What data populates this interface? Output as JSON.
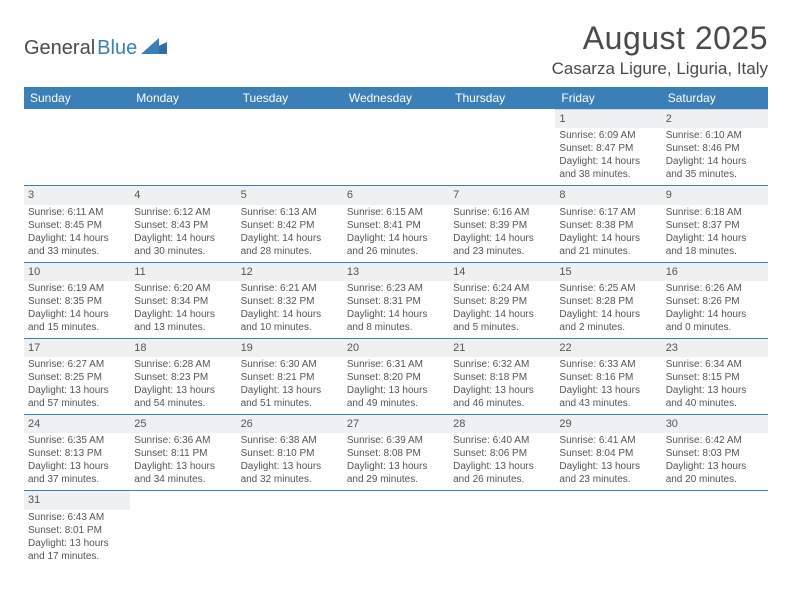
{
  "logo": {
    "text1": "General",
    "text2": "Blue"
  },
  "title": "August 2025",
  "location": "Casarza Ligure, Liguria, Italy",
  "header_bg": "#3a7fb8",
  "days": [
    "Sunday",
    "Monday",
    "Tuesday",
    "Wednesday",
    "Thursday",
    "Friday",
    "Saturday"
  ],
  "weeks": [
    [
      null,
      null,
      null,
      null,
      null,
      {
        "n": "1",
        "sr": "Sunrise: 6:09 AM",
        "ss": "Sunset: 8:47 PM",
        "dl": "Daylight: 14 hours and 38 minutes."
      },
      {
        "n": "2",
        "sr": "Sunrise: 6:10 AM",
        "ss": "Sunset: 8:46 PM",
        "dl": "Daylight: 14 hours and 35 minutes."
      }
    ],
    [
      {
        "n": "3",
        "sr": "Sunrise: 6:11 AM",
        "ss": "Sunset: 8:45 PM",
        "dl": "Daylight: 14 hours and 33 minutes."
      },
      {
        "n": "4",
        "sr": "Sunrise: 6:12 AM",
        "ss": "Sunset: 8:43 PM",
        "dl": "Daylight: 14 hours and 30 minutes."
      },
      {
        "n": "5",
        "sr": "Sunrise: 6:13 AM",
        "ss": "Sunset: 8:42 PM",
        "dl": "Daylight: 14 hours and 28 minutes."
      },
      {
        "n": "6",
        "sr": "Sunrise: 6:15 AM",
        "ss": "Sunset: 8:41 PM",
        "dl": "Daylight: 14 hours and 26 minutes."
      },
      {
        "n": "7",
        "sr": "Sunrise: 6:16 AM",
        "ss": "Sunset: 8:39 PM",
        "dl": "Daylight: 14 hours and 23 minutes."
      },
      {
        "n": "8",
        "sr": "Sunrise: 6:17 AM",
        "ss": "Sunset: 8:38 PM",
        "dl": "Daylight: 14 hours and 21 minutes."
      },
      {
        "n": "9",
        "sr": "Sunrise: 6:18 AM",
        "ss": "Sunset: 8:37 PM",
        "dl": "Daylight: 14 hours and 18 minutes."
      }
    ],
    [
      {
        "n": "10",
        "sr": "Sunrise: 6:19 AM",
        "ss": "Sunset: 8:35 PM",
        "dl": "Daylight: 14 hours and 15 minutes."
      },
      {
        "n": "11",
        "sr": "Sunrise: 6:20 AM",
        "ss": "Sunset: 8:34 PM",
        "dl": "Daylight: 14 hours and 13 minutes."
      },
      {
        "n": "12",
        "sr": "Sunrise: 6:21 AM",
        "ss": "Sunset: 8:32 PM",
        "dl": "Daylight: 14 hours and 10 minutes."
      },
      {
        "n": "13",
        "sr": "Sunrise: 6:23 AM",
        "ss": "Sunset: 8:31 PM",
        "dl": "Daylight: 14 hours and 8 minutes."
      },
      {
        "n": "14",
        "sr": "Sunrise: 6:24 AM",
        "ss": "Sunset: 8:29 PM",
        "dl": "Daylight: 14 hours and 5 minutes."
      },
      {
        "n": "15",
        "sr": "Sunrise: 6:25 AM",
        "ss": "Sunset: 8:28 PM",
        "dl": "Daylight: 14 hours and 2 minutes."
      },
      {
        "n": "16",
        "sr": "Sunrise: 6:26 AM",
        "ss": "Sunset: 8:26 PM",
        "dl": "Daylight: 14 hours and 0 minutes."
      }
    ],
    [
      {
        "n": "17",
        "sr": "Sunrise: 6:27 AM",
        "ss": "Sunset: 8:25 PM",
        "dl": "Daylight: 13 hours and 57 minutes."
      },
      {
        "n": "18",
        "sr": "Sunrise: 6:28 AM",
        "ss": "Sunset: 8:23 PM",
        "dl": "Daylight: 13 hours and 54 minutes."
      },
      {
        "n": "19",
        "sr": "Sunrise: 6:30 AM",
        "ss": "Sunset: 8:21 PM",
        "dl": "Daylight: 13 hours and 51 minutes."
      },
      {
        "n": "20",
        "sr": "Sunrise: 6:31 AM",
        "ss": "Sunset: 8:20 PM",
        "dl": "Daylight: 13 hours and 49 minutes."
      },
      {
        "n": "21",
        "sr": "Sunrise: 6:32 AM",
        "ss": "Sunset: 8:18 PM",
        "dl": "Daylight: 13 hours and 46 minutes."
      },
      {
        "n": "22",
        "sr": "Sunrise: 6:33 AM",
        "ss": "Sunset: 8:16 PM",
        "dl": "Daylight: 13 hours and 43 minutes."
      },
      {
        "n": "23",
        "sr": "Sunrise: 6:34 AM",
        "ss": "Sunset: 8:15 PM",
        "dl": "Daylight: 13 hours and 40 minutes."
      }
    ],
    [
      {
        "n": "24",
        "sr": "Sunrise: 6:35 AM",
        "ss": "Sunset: 8:13 PM",
        "dl": "Daylight: 13 hours and 37 minutes."
      },
      {
        "n": "25",
        "sr": "Sunrise: 6:36 AM",
        "ss": "Sunset: 8:11 PM",
        "dl": "Daylight: 13 hours and 34 minutes."
      },
      {
        "n": "26",
        "sr": "Sunrise: 6:38 AM",
        "ss": "Sunset: 8:10 PM",
        "dl": "Daylight: 13 hours and 32 minutes."
      },
      {
        "n": "27",
        "sr": "Sunrise: 6:39 AM",
        "ss": "Sunset: 8:08 PM",
        "dl": "Daylight: 13 hours and 29 minutes."
      },
      {
        "n": "28",
        "sr": "Sunrise: 6:40 AM",
        "ss": "Sunset: 8:06 PM",
        "dl": "Daylight: 13 hours and 26 minutes."
      },
      {
        "n": "29",
        "sr": "Sunrise: 6:41 AM",
        "ss": "Sunset: 8:04 PM",
        "dl": "Daylight: 13 hours and 23 minutes."
      },
      {
        "n": "30",
        "sr": "Sunrise: 6:42 AM",
        "ss": "Sunset: 8:03 PM",
        "dl": "Daylight: 13 hours and 20 minutes."
      }
    ],
    [
      {
        "n": "31",
        "sr": "Sunrise: 6:43 AM",
        "ss": "Sunset: 8:01 PM",
        "dl": "Daylight: 13 hours and 17 minutes."
      },
      null,
      null,
      null,
      null,
      null,
      null
    ]
  ]
}
